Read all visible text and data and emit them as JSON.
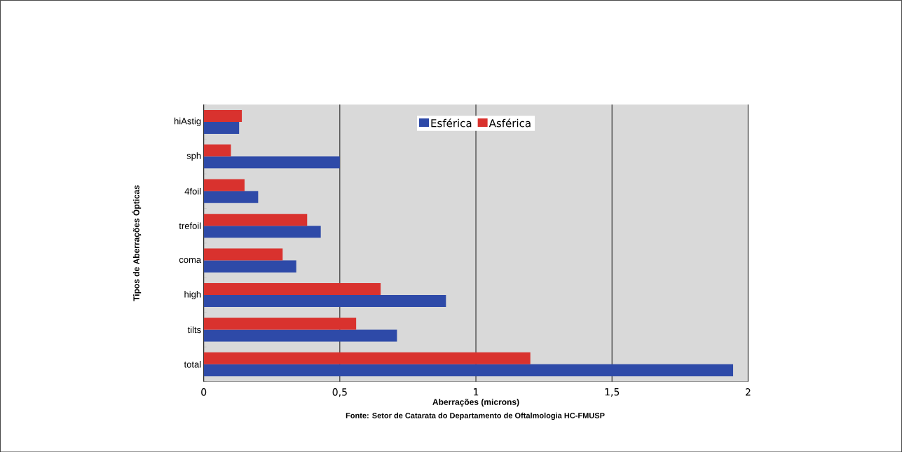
{
  "chart_data": {
    "type": "bar",
    "orientation": "horizontal",
    "xlabel": "Aberrações (microns)",
    "ylabel": "Tipos de Aberrações Ópticas",
    "categories": [
      "hiAstig",
      "sph",
      "4foil",
      "trefoil",
      "coma",
      "high",
      "tilts",
      "total"
    ],
    "series": [
      {
        "name": "Esférica",
        "color": "#2e4aa8",
        "values": [
          0.13,
          0.5,
          0.2,
          0.43,
          0.34,
          0.89,
          0.71,
          1.945
        ]
      },
      {
        "name": "Asférica",
        "color": "#d9322e",
        "values": [
          0.14,
          0.1,
          0.15,
          0.38,
          0.29,
          0.65,
          0.56,
          1.2
        ]
      }
    ],
    "xlim": [
      0,
      2
    ],
    "xticks": [
      0,
      {
        "value": 0.5,
        "label": "0,5"
      },
      1,
      {
        "value": 1.5,
        "label": "1,5"
      },
      2
    ],
    "grid": "x",
    "legend": "top",
    "annotations": [
      "Fonte: Setor de Catarata do Departamento de Oftalmologia HC-FMUSP"
    ]
  }
}
